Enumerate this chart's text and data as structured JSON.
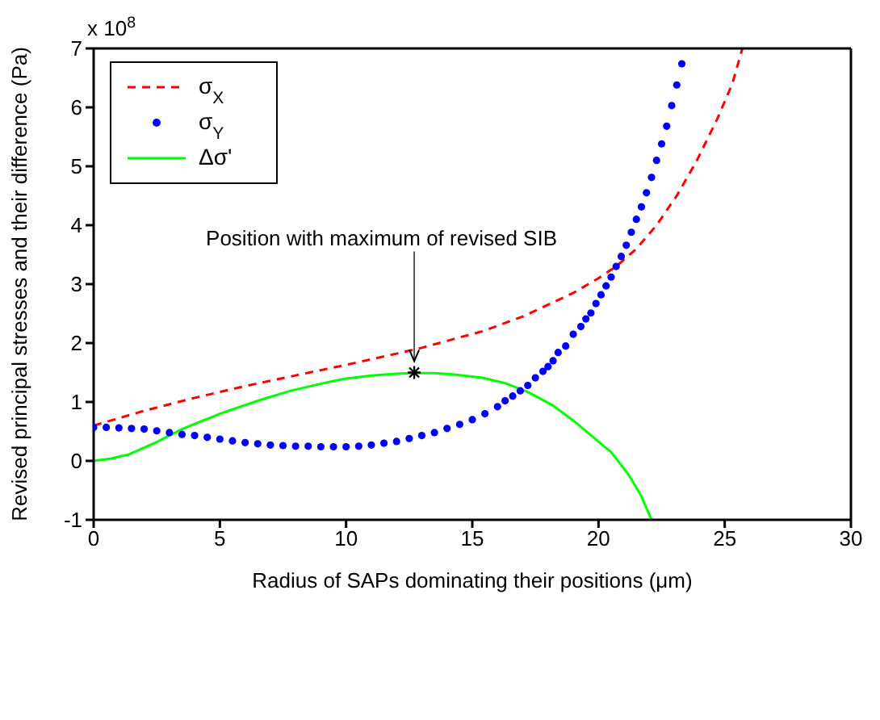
{
  "chart_data": {
    "type": "line",
    "xlabel": "Radius of SAPs dominating their positions (μm)",
    "ylabel": "Revised principal stresses and their difference (Pa)",
    "xlim": [
      0,
      30
    ],
    "xticks": [
      0,
      5,
      10,
      15,
      20,
      25,
      30
    ],
    "ylim": [
      -1,
      7
    ],
    "yticks": [
      -1,
      0,
      1,
      2,
      3,
      4,
      5,
      6,
      7
    ],
    "legend": "top left",
    "annotations": [
      "x 10$^{8}$",
      {
        "text": "Position with maximum of revised SIB",
        "x": 12.7,
        "y": 1.5
      }
    ],
    "series": [
      {
        "name": "σ$_{X}$",
        "type": "line",
        "line_style": "dashed",
        "marker": "none",
        "color": "#ff0000",
        "x": [
          0,
          2,
          4,
          6,
          8,
          10,
          12,
          13,
          14.2,
          15.4,
          17,
          19,
          20,
          20.7,
          21.5,
          22.3,
          23.1,
          23.9,
          24.7,
          25.3,
          25.7
        ],
        "values": [
          0.6,
          0.85,
          1.07,
          1.27,
          1.45,
          1.63,
          1.82,
          1.92,
          2.06,
          2.2,
          2.45,
          2.85,
          3.1,
          3.3,
          3.6,
          4.0,
          4.5,
          5.1,
          5.8,
          6.4,
          7.0
        ]
      },
      {
        "name": "σ$_{Y}$",
        "type": "scatter",
        "marker": "circle",
        "color": "#0000ff",
        "x": [
          0,
          0.5,
          1,
          1.5,
          2,
          2.5,
          3,
          3.5,
          4,
          4.5,
          5,
          5.5,
          6,
          6.5,
          7,
          7.5,
          8,
          8.5,
          9,
          9.5,
          10,
          10.5,
          11,
          11.5,
          12,
          12.5,
          13,
          13.5,
          14,
          14.5,
          15,
          15.5,
          16,
          16.3,
          16.6,
          16.9,
          17.2,
          17.5,
          17.8,
          18,
          18.2,
          18.4,
          18.7,
          19,
          19.3,
          19.5,
          19.7,
          19.9,
          20.1,
          20.3,
          20.5,
          20.7,
          20.9,
          21.1,
          21.3,
          21.5,
          21.7,
          21.9,
          22.1,
          22.3,
          22.5,
          22.7,
          22.9,
          23.1,
          23.3
        ],
        "values": [
          0.57,
          0.57,
          0.56,
          0.55,
          0.54,
          0.51,
          0.48,
          0.45,
          0.43,
          0.4,
          0.37,
          0.34,
          0.31,
          0.29,
          0.27,
          0.26,
          0.25,
          0.25,
          0.24,
          0.24,
          0.24,
          0.25,
          0.27,
          0.3,
          0.33,
          0.38,
          0.43,
          0.48,
          0.55,
          0.62,
          0.7,
          0.8,
          0.92,
          1.02,
          1.1,
          1.19,
          1.28,
          1.41,
          1.52,
          1.6,
          1.7,
          1.84,
          1.95,
          2.15,
          2.28,
          2.41,
          2.51,
          2.67,
          2.82,
          2.97,
          3.12,
          3.3,
          3.47,
          3.66,
          3.88,
          4.1,
          4.31,
          4.55,
          4.81,
          5.1,
          5.38,
          5.68,
          6.03,
          6.38,
          6.74
        ]
      },
      {
        "name": "Δσ'",
        "line_style": "solid",
        "marker": "none",
        "color": "#00ff00",
        "x": [
          0,
          0.7,
          1.4,
          2.5,
          3.5,
          5,
          6.5,
          7.8,
          9,
          9.9,
          11,
          12,
          12.7,
          13.5,
          14.2,
          15.4,
          16.3,
          17.2,
          18.2,
          19.1,
          19.8,
          20.5,
          21.2,
          21.7,
          22.1
        ],
        "values": [
          0,
          0.04,
          0.11,
          0.32,
          0.54,
          0.8,
          1.02,
          1.19,
          1.31,
          1.39,
          1.45,
          1.48,
          1.49,
          1.49,
          1.47,
          1.41,
          1.32,
          1.17,
          0.94,
          0.65,
          0.4,
          0.15,
          -0.24,
          -0.6,
          -1.0
        ]
      }
    ]
  }
}
